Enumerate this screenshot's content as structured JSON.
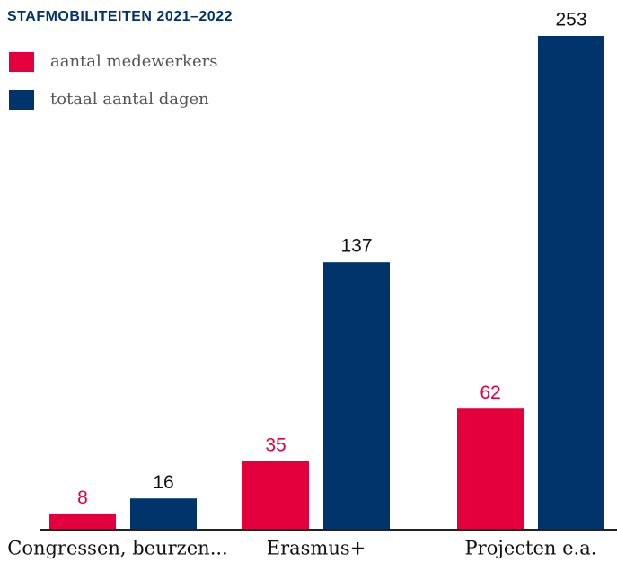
{
  "chart_data": {
    "type": "bar",
    "title": "STAFMOBILITEITEN 2021–2022",
    "categories": [
      "Congressen, beurzen...",
      "Erasmus+",
      "Projecten e.a."
    ],
    "series": [
      {
        "name": "aantal medewerkers",
        "color": "#e4003c",
        "values": [
          8,
          35,
          62
        ]
      },
      {
        "name": "totaal aantal dagen",
        "color": "#00346a",
        "values": [
          16,
          137,
          253
        ]
      }
    ]
  }
}
